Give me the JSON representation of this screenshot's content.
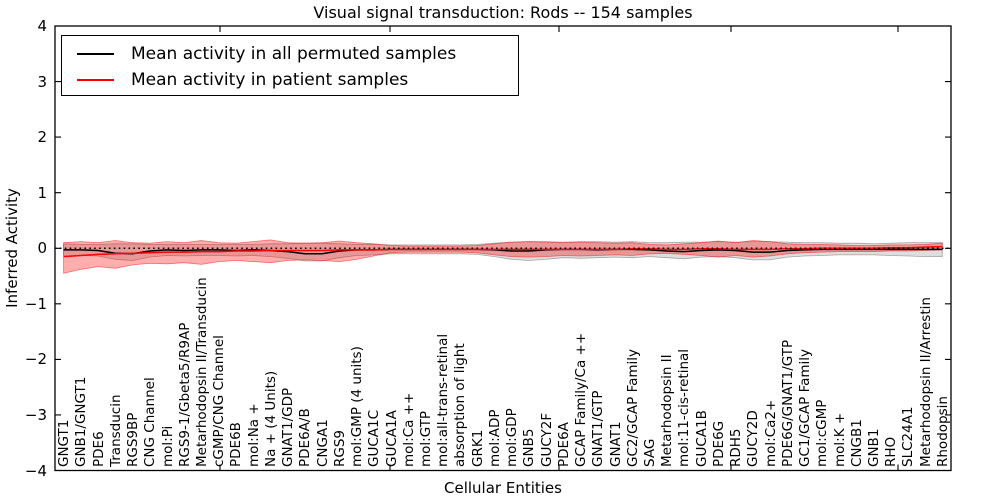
{
  "chart_data": {
    "type": "line",
    "title": "Visual signal transduction: Rods -- 154 samples",
    "xlabel": "Cellular Entities",
    "ylabel": "Inferred Activity",
    "ylim": [
      -4,
      4
    ],
    "yticks": [
      4,
      3,
      2,
      1,
      0,
      -1,
      -2,
      -3,
      -4
    ],
    "grid": false,
    "legend_position": "upper left",
    "zero_reference_line": {
      "y": 0,
      "style": "dotted",
      "color": "#000000"
    },
    "categories": [
      "GNGT1",
      "GNB1/GNGT1",
      "PDE6",
      "Transducin",
      "RGS9BP",
      "CNG Channel",
      "mol:Pi",
      "RGS9-1/Gbeta5/R9AP",
      "Metarhodopsin II/Transducin",
      "cGMP/CNG Channel",
      "PDE6B",
      "mol:Na +",
      "Na + (4 Units)",
      "GNAT1/GDP",
      "PDE6A/B",
      "CNGA1",
      "RGS9",
      "mol:GMP (4 units)",
      "GUCA1C",
      "GUCA1A",
      "mol:Ca ++",
      "mol:GTP",
      "mol:all-trans-retinal",
      "absorption of light",
      "GRK1",
      "mol:ADP",
      "mol:GDP",
      "GNB5",
      "GUCY2F",
      "PDE6A",
      "GCAP Family/Ca ++",
      "GNAT1/GTP",
      "GNAT1",
      "GC2/GCAP Family",
      "SAG",
      "Metarhodopsin II",
      "mol:11-cis-retinal",
      "GUCA1B",
      "PDE6G",
      "RDH5",
      "GUCY2D",
      "mol:Ca2+",
      "PDE6G/GNAT1/GTP",
      "GC1/GCAP Family",
      "mol:cGMP",
      "mol:K +",
      "CNGB1",
      "GNB1",
      "RHO",
      "SLC24A1",
      "Metarhodopsin II/Arrestin",
      "Rhodopsin"
    ],
    "series": [
      {
        "name": "Mean activity in all permuted samples",
        "color": "#000000",
        "band_color": "#000000",
        "band_opacity": 0.13,
        "values": [
          -0.03,
          -0.03,
          -0.04,
          -0.09,
          -0.1,
          -0.05,
          -0.03,
          -0.04,
          -0.03,
          -0.03,
          -0.04,
          -0.03,
          -0.04,
          -0.06,
          -0.1,
          -0.1,
          -0.05,
          -0.03,
          -0.03,
          -0.02,
          -0.02,
          -0.02,
          -0.02,
          -0.02,
          -0.02,
          -0.03,
          -0.05,
          -0.05,
          -0.03,
          -0.02,
          -0.02,
          -0.03,
          -0.02,
          -0.02,
          -0.03,
          -0.05,
          -0.06,
          -0.04,
          -0.03,
          -0.04,
          -0.07,
          -0.07,
          -0.04,
          -0.03,
          -0.02,
          -0.02,
          -0.02,
          -0.02,
          -0.02,
          -0.02,
          -0.02,
          -0.02
        ],
        "band_upper": [
          0.08,
          0.07,
          0.07,
          0.08,
          0.08,
          0.07,
          0.07,
          0.07,
          0.07,
          0.07,
          0.07,
          0.07,
          0.08,
          0.08,
          0.09,
          0.09,
          0.08,
          0.07,
          0.07,
          0.06,
          0.06,
          0.06,
          0.06,
          0.06,
          0.07,
          0.09,
          0.11,
          0.12,
          0.12,
          0.11,
          0.12,
          0.12,
          0.11,
          0.12,
          0.1,
          0.1,
          0.11,
          0.11,
          0.12,
          0.11,
          0.12,
          0.12,
          0.11,
          0.1,
          0.1,
          0.09,
          0.09,
          0.08,
          0.09,
          0.1,
          0.1,
          0.1
        ],
        "band_lower": [
          -0.14,
          -0.13,
          -0.14,
          -0.2,
          -0.22,
          -0.16,
          -0.13,
          -0.14,
          -0.13,
          -0.13,
          -0.14,
          -0.13,
          -0.15,
          -0.18,
          -0.23,
          -0.23,
          -0.17,
          -0.13,
          -0.12,
          -0.1,
          -0.1,
          -0.1,
          -0.1,
          -0.1,
          -0.11,
          -0.15,
          -0.2,
          -0.22,
          -0.2,
          -0.17,
          -0.18,
          -0.17,
          -0.16,
          -0.17,
          -0.15,
          -0.17,
          -0.19,
          -0.16,
          -0.15,
          -0.17,
          -0.21,
          -0.21,
          -0.16,
          -0.14,
          -0.13,
          -0.12,
          -0.12,
          -0.12,
          -0.13,
          -0.14,
          -0.15,
          -0.15
        ]
      },
      {
        "name": "Mean activity in patient samples",
        "color": "#ff0000",
        "band_color": "#ff0000",
        "band_opacity": 0.32,
        "values": [
          -0.15,
          -0.13,
          -0.11,
          -0.1,
          -0.09,
          -0.08,
          -0.07,
          -0.07,
          -0.06,
          -0.06,
          -0.05,
          -0.05,
          -0.04,
          -0.04,
          -0.04,
          -0.04,
          -0.03,
          -0.03,
          -0.03,
          -0.02,
          -0.02,
          -0.02,
          -0.02,
          -0.02,
          -0.02,
          -0.02,
          -0.02,
          -0.02,
          -0.02,
          -0.02,
          -0.02,
          -0.02,
          -0.02,
          -0.01,
          -0.01,
          -0.02,
          -0.02,
          -0.01,
          -0.01,
          -0.02,
          -0.02,
          -0.02,
          -0.01,
          -0.01,
          0.0,
          0.0,
          0.0,
          0.0,
          0.01,
          0.01,
          0.02,
          0.03
        ],
        "band_upper": [
          0.1,
          0.12,
          0.1,
          0.14,
          0.1,
          0.09,
          0.12,
          0.1,
          0.14,
          0.1,
          0.09,
          0.12,
          0.15,
          0.1,
          0.09,
          0.1,
          0.13,
          0.1,
          0.08,
          0.05,
          0.04,
          0.04,
          0.04,
          0.04,
          0.05,
          0.08,
          0.11,
          0.12,
          0.11,
          0.1,
          0.11,
          0.1,
          0.09,
          0.1,
          0.07,
          0.06,
          0.08,
          0.1,
          0.13,
          0.1,
          0.14,
          0.12,
          0.08,
          0.07,
          0.07,
          0.06,
          0.05,
          0.05,
          0.06,
          0.06,
          0.07,
          0.09
        ],
        "band_lower": [
          -0.45,
          -0.38,
          -0.33,
          -0.36,
          -0.3,
          -0.27,
          -0.28,
          -0.26,
          -0.29,
          -0.24,
          -0.22,
          -0.24,
          -0.26,
          -0.22,
          -0.21,
          -0.22,
          -0.24,
          -0.2,
          -0.14,
          -0.08,
          -0.07,
          -0.07,
          -0.07,
          -0.07,
          -0.08,
          -0.12,
          -0.15,
          -0.16,
          -0.15,
          -0.13,
          -0.14,
          -0.13,
          -0.12,
          -0.13,
          -0.1,
          -0.09,
          -0.11,
          -0.13,
          -0.16,
          -0.13,
          -0.16,
          -0.14,
          -0.1,
          -0.08,
          -0.07,
          -0.06,
          -0.06,
          -0.06,
          -0.05,
          -0.05,
          -0.04,
          -0.03
        ]
      }
    ]
  }
}
